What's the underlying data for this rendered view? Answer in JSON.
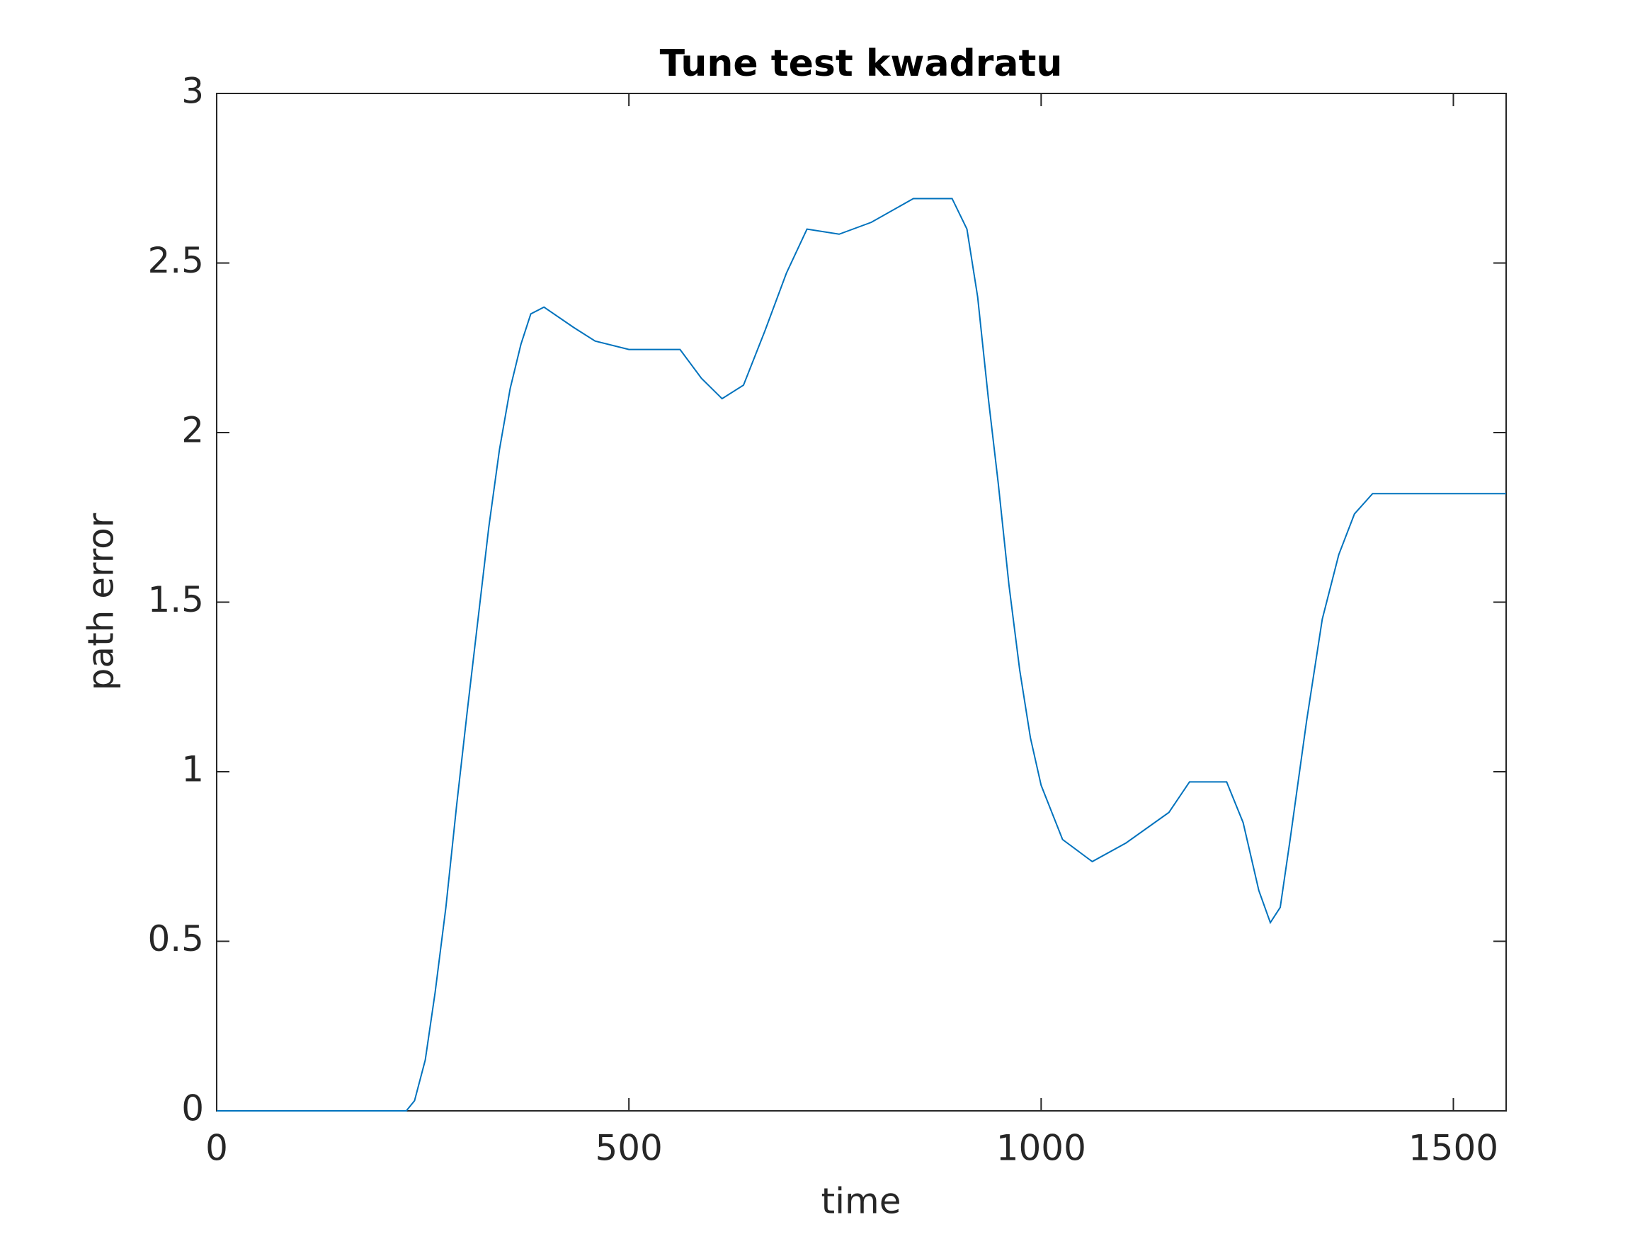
{
  "chart_data": {
    "type": "line",
    "title": "Tune test kwadratu",
    "xlabel": "time",
    "ylabel": "path error",
    "x": [
      0,
      230,
      240,
      253,
      265,
      278,
      291,
      304,
      317,
      330,
      343,
      356,
      369,
      381,
      397,
      433,
      459,
      500,
      562,
      588,
      613,
      639,
      665,
      691,
      716,
      755,
      794,
      845,
      892,
      910,
      923,
      936,
      948,
      961,
      974,
      987,
      1000,
      1026,
      1062,
      1103,
      1155,
      1180,
      1225,
      1245,
      1264,
      1278,
      1290,
      1302,
      1322,
      1341,
      1361,
      1380,
      1402,
      1564
    ],
    "series": [
      {
        "name": "path error",
        "color": "#0072bd",
        "values": [
          0,
          0,
          0.03,
          0.15,
          0.35,
          0.6,
          0.9,
          1.18,
          1.45,
          1.72,
          1.95,
          2.13,
          2.26,
          2.35,
          2.37,
          2.31,
          2.27,
          2.245,
          2.245,
          2.16,
          2.1,
          2.14,
          2.3,
          2.47,
          2.6,
          2.585,
          2.62,
          2.69,
          2.69,
          2.6,
          2.4,
          2.1,
          1.85,
          1.55,
          1.3,
          1.1,
          0.96,
          0.8,
          0.735,
          0.79,
          0.88,
          0.97,
          0.97,
          0.85,
          0.65,
          0.555,
          0.6,
          0.8,
          1.15,
          1.45,
          1.64,
          1.76,
          1.82,
          1.82
        ]
      }
    ],
    "xlim": [
      0,
      1564
    ],
    "xticks": [
      0,
      500,
      1000,
      1500
    ],
    "ylim": [
      0,
      3
    ],
    "yticks": [
      0,
      0.5,
      1,
      1.5,
      2,
      2.5,
      3
    ],
    "grid": false
  }
}
